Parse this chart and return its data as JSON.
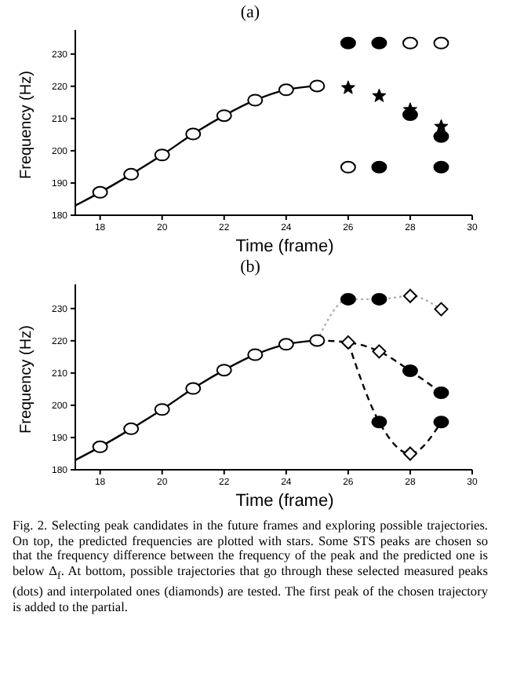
{
  "chart_data": [
    {
      "type": "scatter",
      "title": "(a)",
      "xlabel": "Time (frame)",
      "ylabel": "Frequency (Hz)",
      "xlim": [
        17.2,
        30
      ],
      "ylim": [
        180,
        237.5
      ],
      "xticks": [
        18,
        20,
        22,
        24,
        26,
        28,
        30
      ],
      "yticks": [
        180,
        190,
        200,
        210,
        220,
        230
      ],
      "series": [
        {
          "type": "line",
          "color": "#000000",
          "line_style": "solid",
          "marker": "none",
          "x": [
            17.2,
            18,
            19,
            20,
            21,
            22,
            23,
            24,
            25
          ],
          "values": [
            183,
            187.1,
            192.7,
            198.7,
            205.2,
            210.9,
            215.7,
            218.9,
            220.1
          ]
        },
        {
          "type": "scatter",
          "color": "#ffffff",
          "marker": "circle",
          "x": [
            18,
            19,
            20,
            21,
            22,
            23,
            24,
            25,
            28,
            29,
            26
          ],
          "values": [
            187.1,
            192.7,
            198.7,
            205.2,
            210.9,
            215.7,
            218.9,
            220.1,
            233.4,
            233.4,
            194.9
          ]
        },
        {
          "type": "scatter",
          "color": "#000000",
          "marker": "circle",
          "x": [
            26,
            27,
            27,
            28,
            29,
            29
          ],
          "values": [
            233.4,
            233.4,
            194.9,
            211.2,
            204.4,
            194.9
          ]
        },
        {
          "type": "scatter",
          "color": "#000000",
          "marker": "star",
          "x": [
            26,
            27,
            28,
            29
          ],
          "values": [
            219.5,
            217.0,
            212.7,
            207.5
          ]
        }
      ]
    },
    {
      "type": "scatter",
      "title": "(b)",
      "xlabel": "Time (frame)",
      "ylabel": "Frequency (Hz)",
      "xlim": [
        17.2,
        30
      ],
      "ylim": [
        180,
        237.5
      ],
      "xticks": [
        18,
        20,
        22,
        24,
        26,
        28,
        30
      ],
      "yticks": [
        180,
        190,
        200,
        210,
        220,
        230
      ],
      "annotations": [
        "Fig. 2. Selecting peak candidates in the future frames and exploring possible trajectories. On top, the predicted frequencies are plotted with stars. Some STS peaks are chosen so that the frequency difference between the frequency of the peak and the predicted one is below Δ$_{f}$. At bottom, possible trajectories that go through these selected measured peaks (dots) and interpolated ones (diamonds) are tested. The first peak of the chosen trajectory is added to the partial."
      ],
      "series": [
        {
          "type": "line",
          "color": "#000000",
          "line_style": "solid",
          "marker": "none",
          "x": [
            17.2,
            18,
            19,
            20,
            21,
            22,
            23,
            24,
            25
          ],
          "values": [
            183,
            187.1,
            192.7,
            198.7,
            205.2,
            210.9,
            215.7,
            218.9,
            220.1
          ]
        },
        {
          "type": "line",
          "color": "#b0b0b0",
          "line_style": "dotted",
          "marker": "none",
          "x": [
            25,
            26,
            27,
            28,
            29
          ],
          "values": [
            220.1,
            232.9,
            232.9,
            233.9,
            229.8
          ]
        },
        {
          "type": "line",
          "color": "#000000",
          "line_style": "dashed",
          "marker": "none",
          "x": [
            25,
            26,
            27,
            28,
            29
          ],
          "values": [
            220.1,
            219.5,
            216.7,
            210.7,
            203.9
          ]
        },
        {
          "type": "line",
          "color": "#000000",
          "line_style": "dashed",
          "marker": "none",
          "x": [
            26,
            27,
            28,
            29
          ],
          "values": [
            219.5,
            194.8,
            185.0,
            194.8
          ]
        },
        {
          "type": "scatter",
          "color": "#ffffff",
          "marker": "circle",
          "x": [
            18,
            19,
            20,
            21,
            22,
            23,
            24,
            25
          ],
          "values": [
            187.1,
            192.7,
            198.7,
            205.2,
            210.9,
            215.7,
            218.9,
            220.1
          ]
        },
        {
          "type": "scatter",
          "color": "#000000",
          "marker": "circle",
          "x": [
            26,
            27,
            28,
            29,
            27,
            29
          ],
          "values": [
            232.9,
            232.9,
            210.7,
            203.9,
            194.8,
            194.8
          ]
        },
        {
          "type": "scatter",
          "color": "#ffffff",
          "marker": "diamond",
          "x": [
            26,
            27,
            28,
            29,
            28
          ],
          "values": [
            219.5,
            216.7,
            233.9,
            229.8,
            185.0
          ]
        }
      ]
    }
  ]
}
